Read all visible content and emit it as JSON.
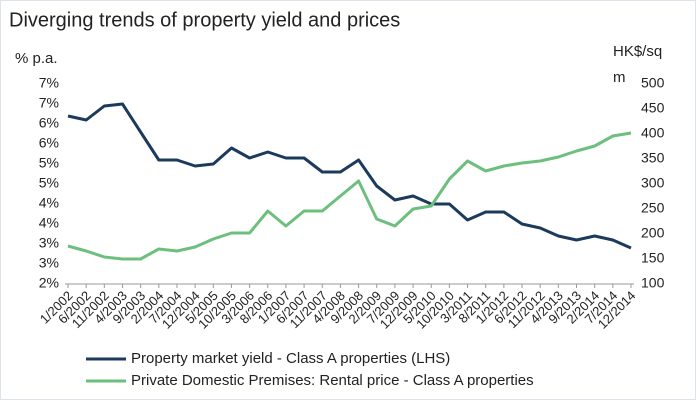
{
  "chart_data": {
    "type": "line",
    "title": "Diverging trends of property yield and prices",
    "y_label": "% p.a.",
    "y2_label": "HK$/sq m",
    "categories": [
      "1/2002",
      "6/2002",
      "11/2002",
      "4/2003",
      "9/2003",
      "2/2004",
      "7/2004",
      "12/2004",
      "5/2005",
      "10/2005",
      "3/2006",
      "8/2006",
      "1/2007",
      "6/2007",
      "11/2007",
      "4/2008",
      "9/2008",
      "2/2009",
      "7/2009",
      "12/2009",
      "5/2010",
      "10/2010",
      "3/2011",
      "8/2011",
      "1/2012",
      "6/2012",
      "11/2012",
      "4/2013",
      "9/2013",
      "2/2014",
      "7/2014",
      "12/2014"
    ],
    "series": [
      {
        "name": "Property market yield - Class A properties (LHS)",
        "color": "#1b3a5c",
        "axis": "y",
        "values": [
          6.2,
          6.1,
          6.45,
          6.5,
          5.8,
          5.1,
          5.1,
          4.95,
          5.0,
          5.4,
          5.15,
          5.3,
          5.15,
          5.15,
          4.8,
          4.8,
          5.1,
          4.45,
          4.1,
          4.2,
          4.0,
          4.0,
          3.6,
          3.8,
          3.8,
          3.5,
          3.4,
          3.2,
          3.1,
          3.2,
          3.1,
          2.9
        ]
      },
      {
        "name": "Private Domestic Premises: Rental price - Class A properties",
        "color": "#6dbf7e",
        "axis": "y2",
        "values": [
          176,
          166,
          154,
          150,
          150,
          170,
          166,
          174,
          190,
          202,
          202,
          246,
          216,
          246,
          246,
          276,
          306,
          230,
          216,
          250,
          256,
          310,
          346,
          326,
          336,
          342,
          346,
          354,
          366,
          376,
          396,
          402
        ]
      }
    ],
    "ylim": [
      2,
      7
    ],
    "yticks": [
      {
        "value": 2,
        "label": "2%"
      },
      {
        "value": 2.5,
        "label": "3%"
      },
      {
        "value": 3,
        "label": "3%"
      },
      {
        "value": 3.5,
        "label": "4%"
      },
      {
        "value": 4,
        "label": "4%"
      },
      {
        "value": 4.5,
        "label": "5%"
      },
      {
        "value": 5,
        "label": "5%"
      },
      {
        "value": 5.5,
        "label": "6%"
      },
      {
        "value": 6,
        "label": "6%"
      },
      {
        "value": 6.5,
        "label": "7%"
      },
      {
        "value": 7,
        "label": "7%"
      }
    ],
    "y2lim": [
      100,
      500
    ],
    "y2ticks": [
      100,
      150,
      200,
      250,
      300,
      350,
      400,
      450,
      500
    ],
    "grid": false,
    "legend": "bottom"
  }
}
